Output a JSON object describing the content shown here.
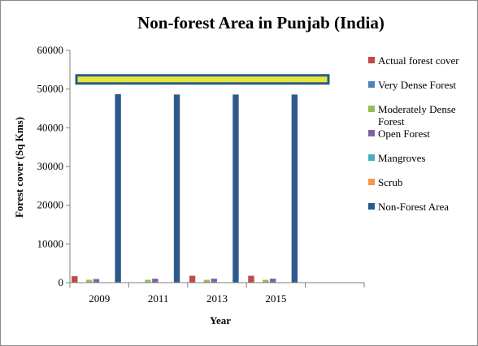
{
  "chart_data": {
    "type": "bar",
    "title": "Non-forest Area in Punjab (India)",
    "xlabel": "Year",
    "ylabel": "Forest cover (Sq Kms)",
    "ylim": [
      0,
      60000
    ],
    "yticks": [
      "0",
      "10000",
      "20000",
      "30000",
      "40000",
      "50000",
      "60000"
    ],
    "categories": [
      "2009",
      "2011",
      "2013",
      "2015"
    ],
    "category_tick_labels": [
      "2009",
      "2011",
      "2013",
      "2015"
    ],
    "series": [
      {
        "name": "Actual forest cover",
        "color": "#be4b48",
        "values": [
          1664,
          0,
          1772,
          1771
        ]
      },
      {
        "name": "Very Dense Forest",
        "color": "#4f81bd",
        "values": [
          0,
          0,
          0,
          0
        ]
      },
      {
        "name": "Moderately Dense Forest",
        "color": "#9bbb59",
        "values": [
          733,
          736,
          736,
          736
        ]
      },
      {
        "name": "Open Forest",
        "color": "#8064a2",
        "values": [
          931,
          1028,
          1036,
          1035
        ]
      },
      {
        "name": "Mangroves",
        "color": "#4bacc6",
        "values": [
          0,
          0,
          0,
          0
        ]
      },
      {
        "name": "Scrub",
        "color": "#f79646",
        "values": [
          0,
          0,
          0,
          0
        ]
      },
      {
        "name": "Non-Forest Area",
        "color": "#2c5a8c",
        "values": [
          48698,
          48598,
          48590,
          48591
        ]
      }
    ],
    "legend_position": "right",
    "grid": false,
    "annotation": {
      "type": "highlight-band",
      "y": 52500,
      "color": "#e6e63a",
      "border": "#2c5a8c"
    }
  }
}
